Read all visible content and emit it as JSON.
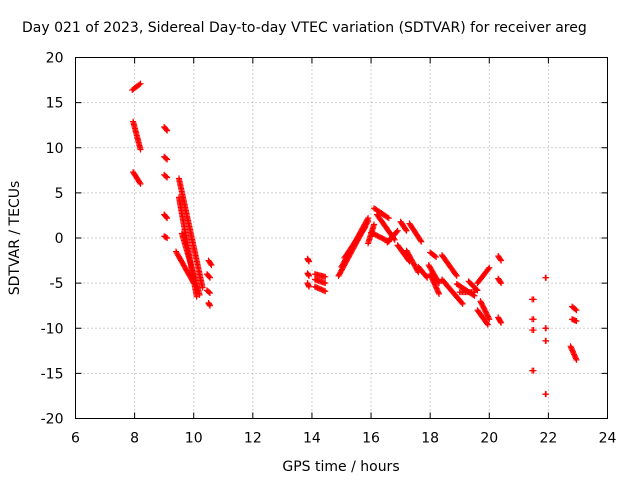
{
  "chart_data": {
    "type": "scatter",
    "title": "Day 021 of 2023, Sidereal Day-to-day VTEC variation (SDTVAR) for receiver areg",
    "xlabel": "GPS time / hours",
    "ylabel": "SDTVAR / TECUs",
    "xlim": [
      6,
      24
    ],
    "ylim": [
      -20,
      20
    ],
    "xticks": [
      6,
      8,
      10,
      12,
      14,
      16,
      18,
      20,
      22,
      24
    ],
    "yticks": [
      -20,
      -15,
      -10,
      -5,
      0,
      5,
      10,
      15,
      20
    ],
    "grid": true,
    "marker": "+",
    "color": "#ff0000",
    "segments": [
      {
        "x": [
          7.92,
          8.2
        ],
        "y": [
          16.4,
          17.1
        ]
      },
      {
        "x": [
          7.95,
          8.2
        ],
        "y": [
          12.9,
          9.8
        ]
      },
      {
        "x": [
          7.95,
          8.2
        ],
        "y": [
          7.3,
          6.0
        ]
      },
      {
        "x": [
          9.0,
          9.1
        ],
        "y": [
          12.3,
          11.9
        ]
      },
      {
        "x": [
          9.0,
          9.1
        ],
        "y": [
          9.0,
          8.7
        ]
      },
      {
        "x": [
          9.0,
          9.1
        ],
        "y": [
          7.0,
          6.7
        ]
      },
      {
        "x": [
          9.0,
          9.1
        ],
        "y": [
          2.6,
          2.2
        ]
      },
      {
        "x": [
          9.0,
          9.1
        ],
        "y": [
          0.2,
          0.0
        ]
      },
      {
        "x": [
          9.5,
          10.3
        ],
        "y": [
          6.6,
          -5.5
        ]
      },
      {
        "x": [
          9.5,
          10.1
        ],
        "y": [
          4.5,
          -6.5
        ]
      },
      {
        "x": [
          9.6,
          10.2
        ],
        "y": [
          0.5,
          -6.3
        ]
      },
      {
        "x": [
          9.4,
          10.0
        ],
        "y": [
          -1.5,
          -5.0
        ]
      },
      {
        "x": [
          10.5,
          10.6
        ],
        "y": [
          -2.5,
          -3.0
        ]
      },
      {
        "x": [
          10.45,
          10.55
        ],
        "y": [
          -4.0,
          -4.4
        ]
      },
      {
        "x": [
          10.45,
          10.55
        ],
        "y": [
          -5.8,
          -6.1
        ]
      },
      {
        "x": [
          10.5,
          10.55
        ],
        "y": [
          -7.2,
          -7.5
        ]
      },
      {
        "x": [
          13.85,
          13.9
        ],
        "y": [
          -2.3,
          -2.6
        ]
      },
      {
        "x": [
          13.85,
          13.9
        ],
        "y": [
          -3.9,
          -4.2
        ]
      },
      {
        "x": [
          13.85,
          13.9
        ],
        "y": [
          -5.0,
          -5.4
        ]
      },
      {
        "x": [
          14.1,
          14.45
        ],
        "y": [
          -4.0,
          -4.3
        ]
      },
      {
        "x": [
          14.1,
          14.45
        ],
        "y": [
          -5.4,
          -5.9
        ]
      },
      {
        "x": [
          14.1,
          14.45
        ],
        "y": [
          -4.6,
          -5.0
        ]
      },
      {
        "x": [
          14.9,
          15.9
        ],
        "y": [
          -4.2,
          1.9
        ]
      },
      {
        "x": [
          15.0,
          15.9
        ],
        "y": [
          -3.2,
          2.2
        ]
      },
      {
        "x": [
          15.1,
          15.8
        ],
        "y": [
          -2.2,
          1.2
        ]
      },
      {
        "x": [
          15.9,
          16.1
        ],
        "y": [
          -0.6,
          1.5
        ]
      },
      {
        "x": [
          16.1,
          16.6
        ],
        "y": [
          3.3,
          2.2
        ]
      },
      {
        "x": [
          16.2,
          16.8
        ],
        "y": [
          2.6,
          -0.2
        ]
      },
      {
        "x": [
          16.0,
          16.6
        ],
        "y": [
          0.6,
          -0.4
        ]
      },
      {
        "x": [
          16.55,
          16.9
        ],
        "y": [
          -0.5,
          0.8
        ]
      },
      {
        "x": [
          17.0,
          17.2
        ],
        "y": [
          1.8,
          0.8
        ]
      },
      {
        "x": [
          16.9,
          17.3
        ],
        "y": [
          -0.8,
          -2.6
        ]
      },
      {
        "x": [
          17.3,
          17.7
        ],
        "y": [
          1.6,
          -0.4
        ]
      },
      {
        "x": [
          17.2,
          17.6
        ],
        "y": [
          -1.4,
          -3.8
        ]
      },
      {
        "x": [
          17.6,
          17.9
        ],
        "y": [
          -3.2,
          -4.4
        ]
      },
      {
        "x": [
          18.0,
          18.2
        ],
        "y": [
          -1.6,
          -2.1
        ]
      },
      {
        "x": [
          17.95,
          18.3
        ],
        "y": [
          -3.0,
          -5.0
        ]
      },
      {
        "x": [
          18.0,
          18.3
        ],
        "y": [
          -4.0,
          -6.2
        ]
      },
      {
        "x": [
          18.4,
          18.9
        ],
        "y": [
          -1.9,
          -4.2
        ]
      },
      {
        "x": [
          18.4,
          19.1
        ],
        "y": [
          -4.6,
          -7.3
        ]
      },
      {
        "x": [
          18.9,
          19.5
        ],
        "y": [
          -5.1,
          -6.4
        ]
      },
      {
        "x": [
          19.0,
          19.5
        ],
        "y": [
          -6.0,
          -6.0
        ]
      },
      {
        "x": [
          19.3,
          19.6
        ],
        "y": [
          -4.8,
          -5.8
        ]
      },
      {
        "x": [
          19.6,
          19.95
        ],
        "y": [
          -8.0,
          -9.6
        ]
      },
      {
        "x": [
          19.6,
          20.0
        ],
        "y": [
          -5.0,
          -3.3
        ]
      },
      {
        "x": [
          19.7,
          20.0
        ],
        "y": [
          -7.0,
          -9.0
        ]
      },
      {
        "x": [
          20.3,
          20.4
        ],
        "y": [
          -2.0,
          -2.5
        ]
      },
      {
        "x": [
          20.3,
          20.4
        ],
        "y": [
          -4.5,
          -5.0
        ]
      },
      {
        "x": [
          20.3,
          20.4
        ],
        "y": [
          -8.8,
          -9.4
        ]
      },
      {
        "x": [
          21.45,
          21.5
        ],
        "y": [
          -6.8,
          -6.8
        ]
      },
      {
        "x": [
          21.45,
          21.5
        ],
        "y": [
          -9.0,
          -9.0
        ]
      },
      {
        "x": [
          21.45,
          21.5
        ],
        "y": [
          -10.2,
          -10.2
        ]
      },
      {
        "x": [
          21.45,
          21.5
        ],
        "y": [
          -14.7,
          -14.7
        ]
      },
      {
        "x": [
          21.9,
          21.92
        ],
        "y": [
          -4.4,
          -4.4
        ]
      },
      {
        "x": [
          21.9,
          21.92
        ],
        "y": [
          -10.0,
          -10.0
        ]
      },
      {
        "x": [
          21.9,
          21.92
        ],
        "y": [
          -11.4,
          -11.4
        ]
      },
      {
        "x": [
          21.9,
          21.92
        ],
        "y": [
          -17.3,
          -17.3
        ]
      },
      {
        "x": [
          22.8,
          22.95
        ],
        "y": [
          -7.6,
          -8.0
        ]
      },
      {
        "x": [
          22.8,
          22.95
        ],
        "y": [
          -9.0,
          -9.2
        ]
      },
      {
        "x": [
          22.75,
          22.95
        ],
        "y": [
          -12.0,
          -13.5
        ]
      }
    ]
  }
}
